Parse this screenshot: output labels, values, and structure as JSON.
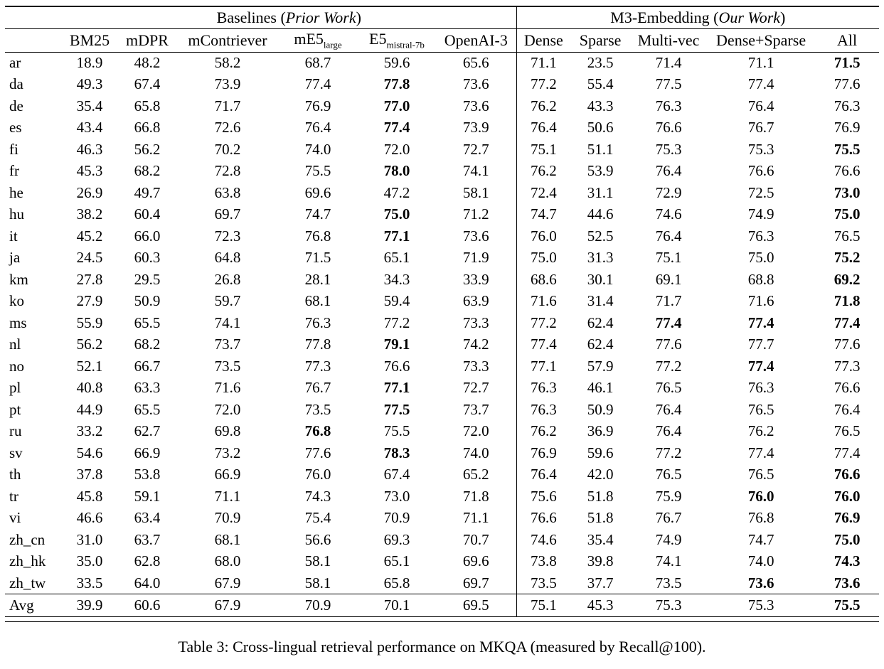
{
  "caption": {
    "text": "Table 3: Cross-lingual retrieval performance on MKQA (measured by Recall@100)."
  },
  "table": {
    "groups": [
      {
        "prefix": "Baselines (",
        "italic": "Prior Work",
        "suffix": ")",
        "span": 6
      },
      {
        "prefix": "M3-Embedding (",
        "italic": "Our Work",
        "suffix": ")",
        "span": 5
      }
    ],
    "columns": [
      {
        "label": "BM25"
      },
      {
        "label": "mDPR"
      },
      {
        "label": "mContriever"
      },
      {
        "label": "mE5",
        "sub": "large"
      },
      {
        "label": "E5",
        "sub": "mistral-7b"
      },
      {
        "label": "OpenAI-3"
      },
      {
        "label": "Dense"
      },
      {
        "label": "Sparse"
      },
      {
        "label": "Multi-vec"
      },
      {
        "label": "Dense+Sparse"
      },
      {
        "label": "All"
      }
    ],
    "rows": [
      {
        "lang": "ar",
        "values": [
          "18.9",
          "48.2",
          "58.2",
          "68.7",
          "59.6",
          "65.6",
          "71.1",
          "23.5",
          "71.4",
          "71.1",
          "71.5"
        ],
        "bold": [
          10
        ]
      },
      {
        "lang": "da",
        "values": [
          "49.3",
          "67.4",
          "73.9",
          "77.4",
          "77.8",
          "73.6",
          "77.2",
          "55.4",
          "77.5",
          "77.4",
          "77.6"
        ],
        "bold": [
          4
        ]
      },
      {
        "lang": "de",
        "values": [
          "35.4",
          "65.8",
          "71.7",
          "76.9",
          "77.0",
          "73.6",
          "76.2",
          "43.3",
          "76.3",
          "76.4",
          "76.3"
        ],
        "bold": [
          4
        ]
      },
      {
        "lang": "es",
        "values": [
          "43.4",
          "66.8",
          "72.6",
          "76.4",
          "77.4",
          "73.9",
          "76.4",
          "50.6",
          "76.6",
          "76.7",
          "76.9"
        ],
        "bold": [
          4
        ]
      },
      {
        "lang": "fi",
        "values": [
          "46.3",
          "56.2",
          "70.2",
          "74.0",
          "72.0",
          "72.7",
          "75.1",
          "51.1",
          "75.3",
          "75.3",
          "75.5"
        ],
        "bold": [
          10
        ]
      },
      {
        "lang": "fr",
        "values": [
          "45.3",
          "68.2",
          "72.8",
          "75.5",
          "78.0",
          "74.1",
          "76.2",
          "53.9",
          "76.4",
          "76.6",
          "76.6"
        ],
        "bold": [
          4
        ]
      },
      {
        "lang": "he",
        "values": [
          "26.9",
          "49.7",
          "63.8",
          "69.6",
          "47.2",
          "58.1",
          "72.4",
          "31.1",
          "72.9",
          "72.5",
          "73.0"
        ],
        "bold": [
          10
        ]
      },
      {
        "lang": "hu",
        "values": [
          "38.2",
          "60.4",
          "69.7",
          "74.7",
          "75.0",
          "71.2",
          "74.7",
          "44.6",
          "74.6",
          "74.9",
          "75.0"
        ],
        "bold": [
          4,
          10
        ]
      },
      {
        "lang": "it",
        "values": [
          "45.2",
          "66.0",
          "72.3",
          "76.8",
          "77.1",
          "73.6",
          "76.0",
          "52.5",
          "76.4",
          "76.3",
          "76.5"
        ],
        "bold": [
          4
        ]
      },
      {
        "lang": "ja",
        "values": [
          "24.5",
          "60.3",
          "64.8",
          "71.5",
          "65.1",
          "71.9",
          "75.0",
          "31.3",
          "75.1",
          "75.0",
          "75.2"
        ],
        "bold": [
          10
        ]
      },
      {
        "lang": "km",
        "values": [
          "27.8",
          "29.5",
          "26.8",
          "28.1",
          "34.3",
          "33.9",
          "68.6",
          "30.1",
          "69.1",
          "68.8",
          "69.2"
        ],
        "bold": [
          10
        ]
      },
      {
        "lang": "ko",
        "values": [
          "27.9",
          "50.9",
          "59.7",
          "68.1",
          "59.4",
          "63.9",
          "71.6",
          "31.4",
          "71.7",
          "71.6",
          "71.8"
        ],
        "bold": [
          10
        ]
      },
      {
        "lang": "ms",
        "values": [
          "55.9",
          "65.5",
          "74.1",
          "76.3",
          "77.2",
          "73.3",
          "77.2",
          "62.4",
          "77.4",
          "77.4",
          "77.4"
        ],
        "bold": [
          8,
          9,
          10
        ]
      },
      {
        "lang": "nl",
        "values": [
          "56.2",
          "68.2",
          "73.7",
          "77.8",
          "79.1",
          "74.2",
          "77.4",
          "62.4",
          "77.6",
          "77.7",
          "77.6"
        ],
        "bold": [
          4
        ]
      },
      {
        "lang": "no",
        "values": [
          "52.1",
          "66.7",
          "73.5",
          "77.3",
          "76.6",
          "73.3",
          "77.1",
          "57.9",
          "77.2",
          "77.4",
          "77.3"
        ],
        "bold": [
          9
        ]
      },
      {
        "lang": "pl",
        "values": [
          "40.8",
          "63.3",
          "71.6",
          "76.7",
          "77.1",
          "72.7",
          "76.3",
          "46.1",
          "76.5",
          "76.3",
          "76.6"
        ],
        "bold": [
          4
        ]
      },
      {
        "lang": "pt",
        "values": [
          "44.9",
          "65.5",
          "72.0",
          "73.5",
          "77.5",
          "73.7",
          "76.3",
          "50.9",
          "76.4",
          "76.5",
          "76.4"
        ],
        "bold": [
          4
        ]
      },
      {
        "lang": "ru",
        "values": [
          "33.2",
          "62.7",
          "69.8",
          "76.8",
          "75.5",
          "72.0",
          "76.2",
          "36.9",
          "76.4",
          "76.2",
          "76.5"
        ],
        "bold": [
          3
        ]
      },
      {
        "lang": "sv",
        "values": [
          "54.6",
          "66.9",
          "73.2",
          "77.6",
          "78.3",
          "74.0",
          "76.9",
          "59.6",
          "77.2",
          "77.4",
          "77.4"
        ],
        "bold": [
          4
        ]
      },
      {
        "lang": "th",
        "values": [
          "37.8",
          "53.8",
          "66.9",
          "76.0",
          "67.4",
          "65.2",
          "76.4",
          "42.0",
          "76.5",
          "76.5",
          "76.6"
        ],
        "bold": [
          10
        ]
      },
      {
        "lang": "tr",
        "values": [
          "45.8",
          "59.1",
          "71.1",
          "74.3",
          "73.0",
          "71.8",
          "75.6",
          "51.8",
          "75.9",
          "76.0",
          "76.0"
        ],
        "bold": [
          9,
          10
        ]
      },
      {
        "lang": "vi",
        "values": [
          "46.6",
          "63.4",
          "70.9",
          "75.4",
          "70.9",
          "71.1",
          "76.6",
          "51.8",
          "76.7",
          "76.8",
          "76.9"
        ],
        "bold": [
          10
        ]
      },
      {
        "lang": "zh_cn",
        "values": [
          "31.0",
          "63.7",
          "68.1",
          "56.6",
          "69.3",
          "70.7",
          "74.6",
          "35.4",
          "74.9",
          "74.7",
          "75.0"
        ],
        "bold": [
          10
        ]
      },
      {
        "lang": "zh_hk",
        "values": [
          "35.0",
          "62.8",
          "68.0",
          "58.1",
          "65.1",
          "69.6",
          "73.8",
          "39.8",
          "74.1",
          "74.0",
          "74.3"
        ],
        "bold": [
          10
        ]
      },
      {
        "lang": "zh_tw",
        "values": [
          "33.5",
          "64.0",
          "67.9",
          "58.1",
          "65.8",
          "69.7",
          "73.5",
          "37.7",
          "73.5",
          "73.6",
          "73.6"
        ],
        "bold": [
          9,
          10
        ]
      }
    ],
    "avg_row": {
      "lang": "Avg",
      "values": [
        "39.9",
        "60.6",
        "67.9",
        "70.9",
        "70.1",
        "69.5",
        "75.1",
        "45.3",
        "75.3",
        "75.3",
        "75.5"
      ],
      "bold": [
        10
      ]
    }
  }
}
